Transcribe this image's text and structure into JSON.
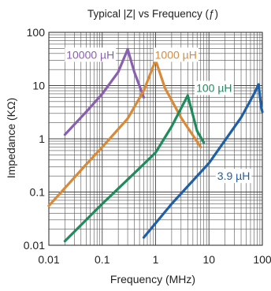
{
  "chart_data": {
    "type": "line",
    "title": "Typical |Z| vs Frequency (ƒ)",
    "xlabel": "Frequency (MHz)",
    "ylabel": "Impedance (KΩ)",
    "xscale": "log",
    "yscale": "log",
    "xlim": [
      0.01,
      100
    ],
    "ylim": [
      0.01,
      100
    ],
    "grid": true,
    "x_ticks": [
      {
        "value": 0.01,
        "label": "0.01"
      },
      {
        "value": 0.1,
        "label": "0.1"
      },
      {
        "value": 1,
        "label": "1"
      },
      {
        "value": 10,
        "label": "10"
      },
      {
        "value": 100,
        "label": "100"
      }
    ],
    "y_ticks": [
      {
        "value": 0.01,
        "label": "0.01"
      },
      {
        "value": 0.1,
        "label": "0.1"
      },
      {
        "value": 1,
        "label": "1"
      },
      {
        "value": 10,
        "label": "10"
      },
      {
        "value": 100,
        "label": "100"
      }
    ],
    "series": [
      {
        "name": "10000 µH",
        "color": "#8b5fb0",
        "label_anchor": {
          "x": 0.06,
          "y": 38
        },
        "points": [
          [
            0.02,
            1.2
          ],
          [
            0.05,
            3.2
          ],
          [
            0.1,
            7
          ],
          [
            0.2,
            18
          ],
          [
            0.3,
            48
          ],
          [
            0.4,
            18
          ],
          [
            0.6,
            6
          ]
        ]
      },
      {
        "name": "1000 µH",
        "color": "#d98a38",
        "label_anchor": {
          "x": 2.4,
          "y": 38
        },
        "points": [
          [
            0.01,
            0.055
          ],
          [
            0.05,
            0.33
          ],
          [
            0.1,
            0.7
          ],
          [
            0.3,
            2.4
          ],
          [
            0.6,
            8
          ],
          [
            1.0,
            30
          ],
          [
            1.5,
            9
          ],
          [
            3,
            2.5
          ],
          [
            7,
            0.7
          ]
        ]
      },
      {
        "name": "100 µH",
        "color": "#1e8c5c",
        "label_anchor": {
          "x": 12.5,
          "y": 9
        },
        "points": [
          [
            0.02,
            0.012
          ],
          [
            0.1,
            0.06
          ],
          [
            0.5,
            0.28
          ],
          [
            1,
            0.55
          ],
          [
            2,
            1.7
          ],
          [
            4,
            6.5
          ],
          [
            6,
            1.4
          ],
          [
            8,
            0.85
          ]
        ]
      },
      {
        "name": "3.9 µH",
        "color": "#1f5fa8",
        "label_anchor": {
          "x": 29,
          "y": 0.2
        },
        "points": [
          [
            0.6,
            0.014
          ],
          [
            2,
            0.06
          ],
          [
            10,
            0.35
          ],
          [
            40,
            2.5
          ],
          [
            70,
            7
          ],
          [
            85,
            10.5
          ],
          [
            95,
            4
          ],
          [
            100,
            3.2
          ]
        ]
      }
    ]
  }
}
